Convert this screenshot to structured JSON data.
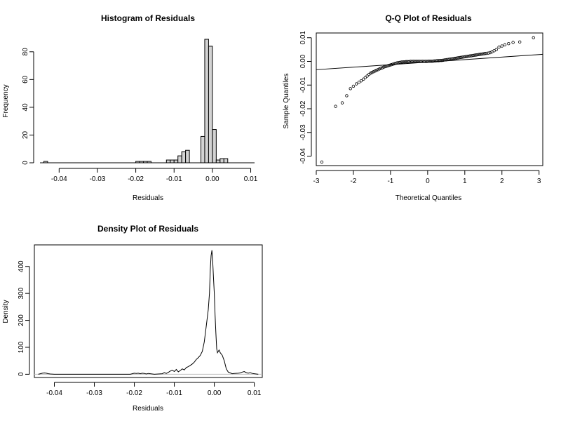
{
  "chart_data": [
    {
      "type": "bar",
      "title": "Histogram of Residuals",
      "xlabel": "Residuals",
      "ylabel": "Frequency",
      "xlim": [
        -0.045,
        0.011
      ],
      "ylim": [
        0,
        89
      ],
      "xticks": [
        -0.04,
        -0.03,
        -0.02,
        -0.01,
        0.0,
        0.01
      ],
      "xtick_labels": [
        "-0.04",
        "-0.03",
        "-0.02",
        "-0.01",
        "0.00",
        "0.01"
      ],
      "yticks": [
        0,
        20,
        40,
        60,
        80
      ],
      "ytick_labels": [
        "0",
        "20",
        "40",
        "60",
        "80"
      ],
      "bin_width": 0.001,
      "bins": [
        {
          "x0": -0.044,
          "count": 1
        },
        {
          "x0": -0.02,
          "count": 1
        },
        {
          "x0": -0.019,
          "count": 1
        },
        {
          "x0": -0.018,
          "count": 1
        },
        {
          "x0": -0.017,
          "count": 1
        },
        {
          "x0": -0.012,
          "count": 2
        },
        {
          "x0": -0.011,
          "count": 2
        },
        {
          "x0": -0.01,
          "count": 2
        },
        {
          "x0": -0.009,
          "count": 5
        },
        {
          "x0": -0.008,
          "count": 8
        },
        {
          "x0": -0.007,
          "count": 9
        },
        {
          "x0": -0.003,
          "count": 19
        },
        {
          "x0": -0.002,
          "count": 89
        },
        {
          "x0": -0.001,
          "count": 84
        },
        {
          "x0": 0.0,
          "count": 24
        },
        {
          "x0": 0.001,
          "count": 2
        },
        {
          "x0": 0.002,
          "count": 3
        },
        {
          "x0": 0.003,
          "count": 3
        }
      ],
      "grid": false
    },
    {
      "type": "scatter",
      "title": "Q-Q Plot of Residuals",
      "xlabel": "Theoretical Quantiles",
      "ylabel": "Sample Quantiles",
      "xlim": [
        -3.0,
        3.1
      ],
      "ylim": [
        -0.044,
        0.012
      ],
      "xticks": [
        -3,
        -2,
        -1,
        0,
        1,
        2,
        3
      ],
      "xtick_labels": [
        "-3",
        "-2",
        "-1",
        "0",
        "1",
        "2",
        "3"
      ],
      "yticks": [
        -0.04,
        -0.03,
        -0.02,
        -0.01,
        0.0,
        0.01
      ],
      "ytick_labels": [
        "-0.04",
        "-0.03",
        "-0.02",
        "-0.01",
        "0.00",
        "0.01"
      ],
      "reference_line": {
        "x": [
          -3.0,
          3.1
        ],
        "y": [
          -0.0035,
          0.003
        ]
      },
      "points": {
        "x": [
          -2.85,
          -2.48,
          -2.3,
          -2.18,
          -2.08,
          -2.0,
          -1.92,
          -1.85,
          -1.79,
          -1.73,
          -1.68,
          -1.63,
          -1.58,
          -1.54,
          -1.5,
          -1.46,
          -1.42,
          -1.38,
          -1.34,
          -1.3,
          -1.26,
          -1.22,
          -1.18,
          -1.14,
          -1.1,
          -1.06,
          -1.02,
          -0.98,
          -0.94,
          -0.9,
          -0.86,
          -0.82,
          -0.78,
          -0.74,
          -0.7,
          -0.66,
          -0.62,
          -0.58,
          -0.54,
          -0.5,
          -0.46,
          -0.42,
          -0.38,
          -0.34,
          -0.3,
          -0.26,
          -0.22,
          -0.18,
          -0.14,
          -0.1,
          -0.06,
          -0.02,
          0.02,
          0.06,
          0.1,
          0.14,
          0.18,
          0.22,
          0.26,
          0.3,
          0.34,
          0.38,
          0.42,
          0.46,
          0.5,
          0.54,
          0.58,
          0.62,
          0.66,
          0.7,
          0.74,
          0.78,
          0.82,
          0.86,
          0.9,
          0.94,
          0.98,
          1.02,
          1.06,
          1.1,
          1.14,
          1.18,
          1.22,
          1.26,
          1.3,
          1.34,
          1.38,
          1.42,
          1.46,
          1.5,
          1.54,
          1.58,
          1.63,
          1.68,
          1.73,
          1.79,
          1.85,
          1.92,
          2.0,
          2.08,
          2.18,
          2.3,
          2.48,
          2.85
        ],
        "y": [
          -0.0425,
          -0.019,
          -0.0175,
          -0.0145,
          -0.0115,
          -0.0105,
          -0.0095,
          -0.0088,
          -0.0082,
          -0.0075,
          -0.0068,
          -0.0062,
          -0.0055,
          -0.005,
          -0.0047,
          -0.0044,
          -0.0041,
          -0.0038,
          -0.0035,
          -0.0032,
          -0.0029,
          -0.0027,
          -0.0024,
          -0.0022,
          -0.002,
          -0.0018,
          -0.0016,
          -0.0014,
          -0.0012,
          -0.001,
          -0.0008,
          -0.0006,
          -0.0005,
          -0.0004,
          -0.0003,
          -0.0002,
          -0.0002,
          -0.0001,
          -0.0001,
          -0.0001,
          0.0,
          0.0,
          0.0,
          0.0,
          0.0,
          0.0,
          0.0,
          0.0,
          0.0,
          0.0,
          0.0,
          0.0,
          0.0001,
          0.0001,
          0.0001,
          0.0001,
          0.0002,
          0.0002,
          0.0003,
          0.0003,
          0.0004,
          0.0004,
          0.0005,
          0.0006,
          0.0007,
          0.0008,
          0.0009,
          0.001,
          0.0011,
          0.0012,
          0.0013,
          0.0014,
          0.0015,
          0.0016,
          0.0017,
          0.0018,
          0.0019,
          0.002,
          0.0021,
          0.0022,
          0.0023,
          0.0024,
          0.0025,
          0.0026,
          0.0027,
          0.0028,
          0.0029,
          0.003,
          0.0031,
          0.0032,
          0.0033,
          0.0034,
          0.0035,
          0.0037,
          0.004,
          0.0045,
          0.005,
          0.006,
          0.0065,
          0.007,
          0.0075,
          0.008,
          0.0082,
          0.01
        ]
      },
      "grid": false
    },
    {
      "type": "line",
      "title": "Density Plot of Residuals",
      "xlabel": "Residuals",
      "ylabel": "Density",
      "xlim": [
        -0.045,
        0.012
      ],
      "ylim": [
        -12,
        480
      ],
      "xticks": [
        -0.04,
        -0.03,
        -0.02,
        -0.01,
        0.0,
        0.01
      ],
      "xtick_labels": [
        "-0.04",
        "-0.03",
        "-0.02",
        "-0.01",
        "0.00",
        "0.01"
      ],
      "yticks": [
        0,
        100,
        200,
        300,
        400
      ],
      "ytick_labels": [
        "0",
        "100",
        "200",
        "300",
        "400"
      ],
      "baseline": 0,
      "series": [
        {
          "x": [
            -0.044,
            -0.0435,
            -0.043,
            -0.0425,
            -0.042,
            -0.0415,
            -0.041,
            -0.04,
            -0.03,
            -0.021,
            -0.0205,
            -0.02,
            -0.0195,
            -0.019,
            -0.0185,
            -0.018,
            -0.0175,
            -0.017,
            -0.0165,
            -0.016,
            -0.0155,
            -0.015,
            -0.014,
            -0.013,
            -0.0125,
            -0.012,
            -0.0115,
            -0.011,
            -0.0105,
            -0.01,
            -0.0095,
            -0.009,
            -0.0085,
            -0.008,
            -0.0075,
            -0.007,
            -0.0065,
            -0.006,
            -0.0055,
            -0.005,
            -0.0045,
            -0.004,
            -0.0035,
            -0.003,
            -0.0025,
            -0.002,
            -0.0015,
            -0.0012,
            -0.001,
            -0.0008,
            -0.0006,
            -0.0004,
            -0.0002,
            0.0,
            0.0002,
            0.0004,
            0.0006,
            0.0008,
            0.001,
            0.0012,
            0.0015,
            0.002,
            0.0025,
            0.003,
            0.0035,
            0.004,
            0.0045,
            0.005,
            0.006,
            0.0065,
            0.007,
            0.0075,
            0.008,
            0.0085,
            0.009,
            0.0095,
            0.01,
            0.0105,
            0.011
          ],
          "y": [
            0,
            2,
            4,
            5,
            4,
            2,
            1,
            0,
            0,
            0,
            2,
            4,
            3,
            4,
            2,
            4,
            3,
            1,
            3,
            2,
            1,
            0,
            1,
            2,
            6,
            3,
            7,
            12,
            15,
            10,
            18,
            9,
            14,
            20,
            16,
            25,
            28,
            33,
            38,
            45,
            55,
            62,
            70,
            85,
            120,
            180,
            240,
            300,
            390,
            440,
            460,
            420,
            360,
            300,
            220,
            150,
            95,
            80,
            85,
            90,
            80,
            70,
            50,
            20,
            8,
            5,
            2,
            3,
            4,
            5,
            8,
            10,
            6,
            4,
            6,
            3,
            2,
            1,
            0
          ]
        }
      ],
      "grid": false
    }
  ]
}
